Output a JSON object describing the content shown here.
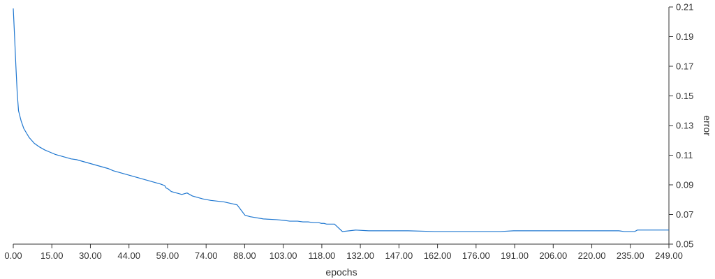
{
  "chart_data": {
    "type": "line",
    "title": "",
    "xlabel": "epochs",
    "ylabel": "error",
    "xlim": [
      0,
      249
    ],
    "ylim": [
      0.05,
      0.21
    ],
    "x_ticks": [
      "0.00",
      "15.00",
      "30.00",
      "44.00",
      "59.00",
      "74.00",
      "88.00",
      "103.00",
      "118.00",
      "132.00",
      "147.00",
      "162.00",
      "176.00",
      "191.00",
      "206.00",
      "220.00",
      "235.00",
      "249.00"
    ],
    "x_tick_values": [
      0,
      14.65,
      29.29,
      43.94,
      58.59,
      73.24,
      87.88,
      102.53,
      117.18,
      131.82,
      146.47,
      161.12,
      175.76,
      190.41,
      205.06,
      219.71,
      234.35,
      249
    ],
    "y_ticks": [
      "0.05",
      "0.07",
      "0.09",
      "0.11",
      "0.13",
      "0.15",
      "0.17",
      "0.19",
      "0.21"
    ],
    "y_tick_values": [
      0.05,
      0.07,
      0.09,
      0.11,
      0.13,
      0.15,
      0.17,
      0.19,
      0.21
    ],
    "grid": false,
    "y_axis_position": "right",
    "line_color": "#1f77d0",
    "series": [
      {
        "x": [
          0,
          0.5,
          1,
          1.5,
          2,
          3,
          4,
          5,
          6,
          7,
          8,
          10,
          12,
          14,
          16,
          18,
          20,
          22,
          24,
          26,
          28,
          30,
          32,
          34,
          36,
          38,
          40,
          42,
          44,
          46,
          48,
          50,
          52,
          54,
          56,
          57.5,
          58,
          59,
          60,
          62,
          64,
          66,
          68,
          70,
          72,
          75,
          80,
          85,
          88,
          90,
          95,
          100,
          103,
          105,
          108,
          110,
          112,
          114,
          116,
          117,
          118,
          119,
          120,
          122,
          125,
          130,
          135,
          140,
          145,
          150,
          160,
          170,
          175,
          180,
          185,
          190,
          200,
          210,
          220,
          230,
          232,
          236,
          237,
          240,
          245,
          249
        ],
        "y": [
          0.209,
          0.19,
          0.17,
          0.152,
          0.14,
          0.133,
          0.128,
          0.125,
          0.122,
          0.12,
          0.118,
          0.1155,
          0.1135,
          0.112,
          0.1105,
          0.1095,
          0.1085,
          0.1075,
          0.107,
          0.106,
          0.105,
          0.104,
          0.103,
          0.102,
          0.101,
          0.0995,
          0.0985,
          0.0975,
          0.0965,
          0.0955,
          0.0945,
          0.0935,
          0.0925,
          0.0915,
          0.0905,
          0.0895,
          0.088,
          0.087,
          0.0855,
          0.0845,
          0.0835,
          0.0845,
          0.0825,
          0.0815,
          0.0805,
          0.0795,
          0.0785,
          0.0765,
          0.0695,
          0.0685,
          0.067,
          0.0665,
          0.066,
          0.0655,
          0.0655,
          0.065,
          0.065,
          0.0645,
          0.0645,
          0.064,
          0.064,
          0.0635,
          0.0635,
          0.0635,
          0.0585,
          0.0595,
          0.059,
          0.059,
          0.059,
          0.059,
          0.0585,
          0.0585,
          0.0585,
          0.0585,
          0.0585,
          0.059,
          0.059,
          0.059,
          0.059,
          0.059,
          0.0585,
          0.0585,
          0.0595,
          0.0595,
          0.0595,
          0.0595
        ]
      }
    ]
  }
}
